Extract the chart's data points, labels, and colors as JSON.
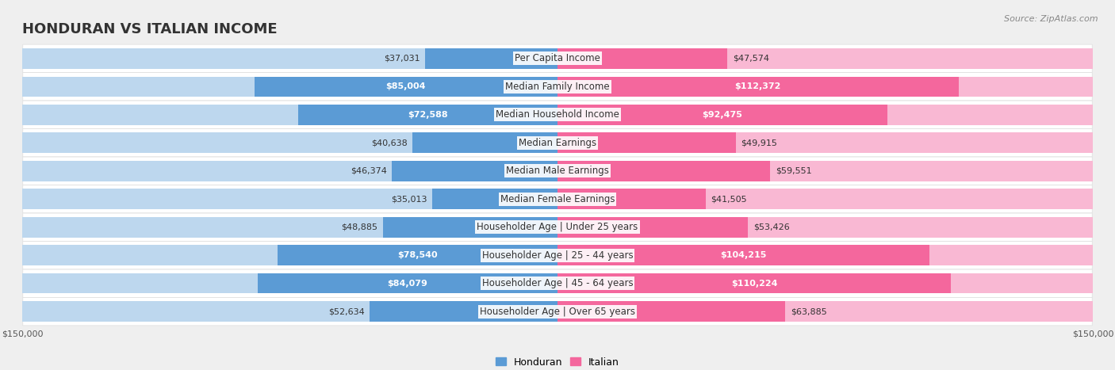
{
  "title": "HONDURAN VS ITALIAN INCOME",
  "source": "Source: ZipAtlas.com",
  "categories": [
    "Per Capita Income",
    "Median Family Income",
    "Median Household Income",
    "Median Earnings",
    "Median Male Earnings",
    "Median Female Earnings",
    "Householder Age | Under 25 years",
    "Householder Age | 25 - 44 years",
    "Householder Age | 45 - 64 years",
    "Householder Age | Over 65 years"
  ],
  "honduran_values": [
    37031,
    85004,
    72588,
    40638,
    46374,
    35013,
    48885,
    78540,
    84079,
    52634
  ],
  "italian_values": [
    47574,
    112372,
    92475,
    49915,
    59551,
    41505,
    53426,
    104215,
    110224,
    63885
  ],
  "max_value": 150000,
  "honduran_color_dark": "#5b9bd5",
  "honduran_color_light": "#bdd7ee",
  "italian_color_dark": "#f4679d",
  "italian_color_light": "#f9b8d3",
  "bg_color": "#efefef",
  "title_fontsize": 13,
  "label_fontsize": 8.5,
  "value_fontsize": 8,
  "axis_label_fontsize": 8,
  "legend_fontsize": 9
}
